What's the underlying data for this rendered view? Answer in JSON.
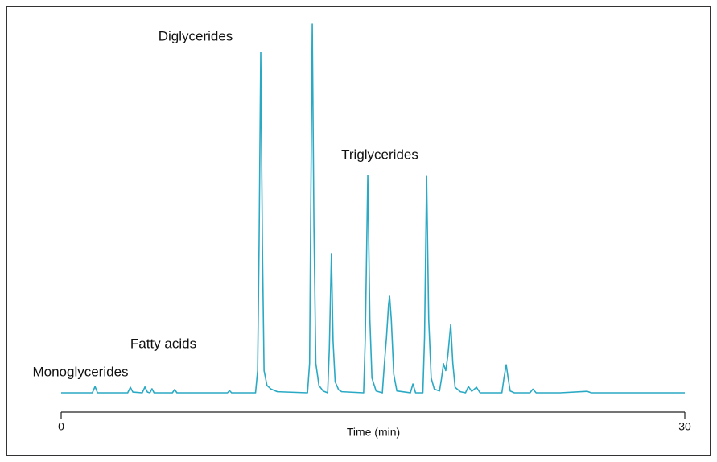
{
  "chart_data": {
    "type": "line",
    "x_label": "Time (min)",
    "annotations": [
      "Diglycerides",
      "Triglycerides",
      "Fatty acids",
      "Monoglycerides"
    ],
    "xlim": [
      0,
      30
    ],
    "xticks": [
      0,
      30
    ],
    "ylim": [
      0,
      100
    ],
    "color": "#2aa9c4",
    "x": [
      0.0,
      1.5,
      1.63,
      1.75,
      3.2,
      3.33,
      3.45,
      3.9,
      4.03,
      4.15,
      4.27,
      4.37,
      4.47,
      5.35,
      5.46,
      5.57,
      8.0,
      8.1,
      8.2,
      9.35,
      9.45,
      9.52,
      9.6,
      9.68,
      9.76,
      9.9,
      10.1,
      10.4,
      11.85,
      11.95,
      12.0,
      12.08,
      12.16,
      12.25,
      12.4,
      12.6,
      12.82,
      12.9,
      13.0,
      13.08,
      13.18,
      13.35,
      13.5,
      14.55,
      14.63,
      14.75,
      14.85,
      14.95,
      15.15,
      15.45,
      15.55,
      15.65,
      15.75,
      15.8,
      15.88,
      16.0,
      16.15,
      16.8,
      16.92,
      17.05,
      17.4,
      17.48,
      17.58,
      17.68,
      17.8,
      17.95,
      18.2,
      18.3,
      18.39,
      18.5,
      18.6,
      18.74,
      18.84,
      18.95,
      19.2,
      19.45,
      19.59,
      19.75,
      19.98,
      20.15,
      21.2,
      21.3,
      21.41,
      21.5,
      21.6,
      21.8,
      22.55,
      22.69,
      22.85,
      24.0,
      25.3,
      25.5,
      30.0
    ],
    "values": [
      0,
      0,
      1.7,
      0,
      0,
      1.5,
      0.2,
      0,
      1.6,
      0.2,
      0,
      1.1,
      0,
      0,
      0.9,
      0,
      0,
      0.6,
      0,
      0,
      6,
      40,
      92.4,
      40,
      6,
      2,
      1,
      0.3,
      0,
      8,
      45,
      100,
      45,
      8,
      2,
      0.5,
      0,
      12,
      37.8,
      14,
      3,
      0.8,
      0.3,
      0,
      15,
      59,
      20,
      4,
      0.5,
      0,
      8,
      15,
      24,
      26.2,
      20,
      5,
      0.5,
      0,
      2.4,
      0,
      0,
      15,
      58.7,
      20,
      4,
      1,
      0.5,
      4,
      7.9,
      6,
      10,
      18.6,
      8,
      1.5,
      0.3,
      0,
      1.7,
      0.4,
      1.5,
      0,
      0,
      4,
      7.6,
      4,
      0.5,
      0,
      0,
      1,
      0,
      0,
      0.4,
      0,
      0
    ]
  }
}
